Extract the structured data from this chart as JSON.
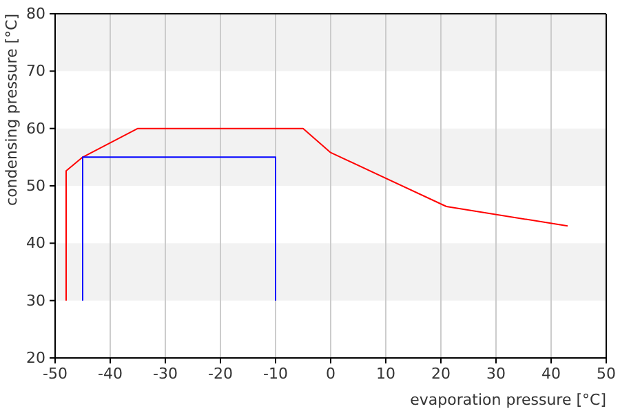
{
  "chart_data": {
    "type": "line",
    "xlabel": "evaporation pressure [°C]",
    "ylabel": "condensing pressure [°C]",
    "xlim": [
      -50,
      50
    ],
    "xticks": [
      -50,
      -40,
      -30,
      -20,
      -10,
      0,
      10,
      20,
      30,
      40,
      50
    ],
    "ylim": [
      20,
      80
    ],
    "yticks": [
      20,
      30,
      40,
      50,
      60,
      70,
      80
    ],
    "grid": true,
    "marker": "none",
    "line_style": "solid",
    "series": [
      {
        "color": "#ff0000",
        "x": [
          -48,
          -48,
          -45,
          -35,
          -5,
          0,
          21,
          43
        ],
        "values": [
          30,
          52.6,
          55,
          60,
          60,
          55.8,
          46.4,
          43
        ]
      },
      {
        "color": "#0000ff",
        "x": [
          -45,
          -45,
          -10,
          -10
        ],
        "values": [
          30,
          55,
          55,
          30
        ]
      }
    ]
  }
}
